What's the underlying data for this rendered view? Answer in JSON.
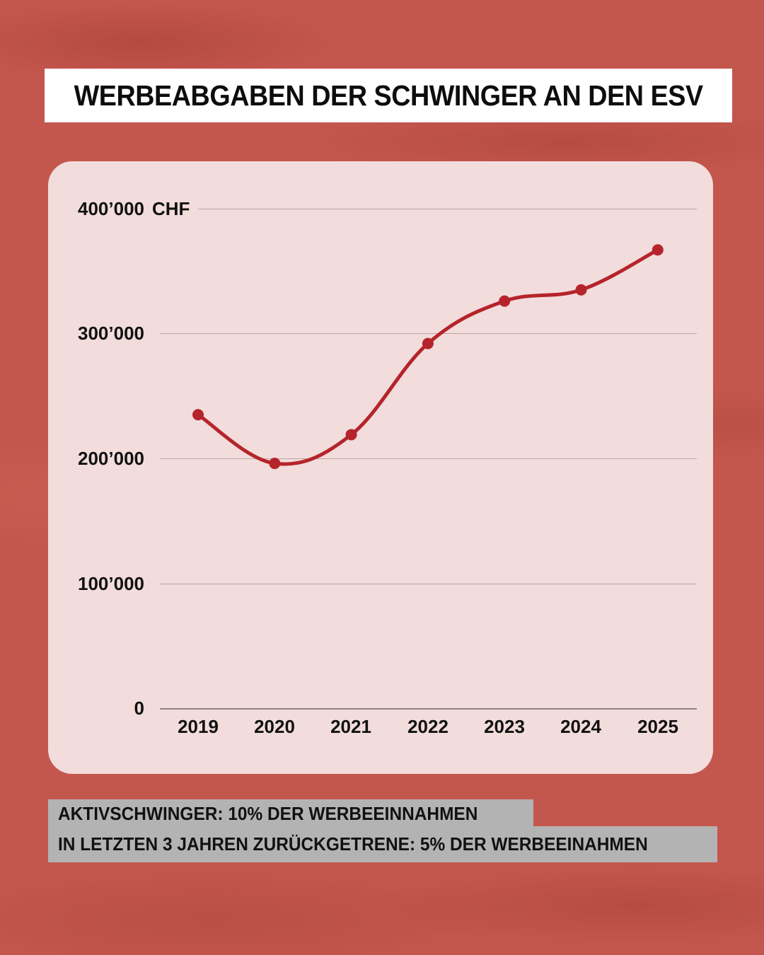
{
  "title": "WERBEABGABEN DER SCHWINGER AN DEN ESV",
  "notes": [
    "AKTIVSCHWINGER: 10% DER WERBEEINNAHMEN",
    "IN LETZTEN 3 JAHREN ZURÜCKGETRENE: 5% DER WERBEEINAHMEN"
  ],
  "colors": {
    "background": "#c4574d",
    "panel": "#f2dcdc",
    "line": "#b5242a",
    "title_box": "#ffffff",
    "note_box": "#b3b3b3"
  },
  "axis": {
    "unit": "CHF",
    "y_ticks": [
      "400’000",
      "300’000",
      "200’000",
      "100’000",
      "0"
    ],
    "x_ticks": [
      "2019",
      "2020",
      "2021",
      "2022",
      "2023",
      "2024",
      "2025"
    ]
  },
  "chart_data": {
    "type": "line",
    "title": "WERBEABGABEN DER SCHWINGER AN DEN ESV",
    "xlabel": "",
    "ylabel": "CHF",
    "categories": [
      "2019",
      "2020",
      "2021",
      "2022",
      "2023",
      "2024",
      "2025"
    ],
    "series": [
      {
        "name": "Werbeabgaben",
        "values": [
          235000,
          196000,
          219000,
          292000,
          326000,
          335000,
          367000
        ]
      }
    ],
    "ylim": [
      0,
      400000
    ],
    "y_ticks": [
      0,
      100000,
      200000,
      300000,
      400000
    ],
    "grid": true,
    "smooth": true,
    "markers": true,
    "legend": "none"
  }
}
